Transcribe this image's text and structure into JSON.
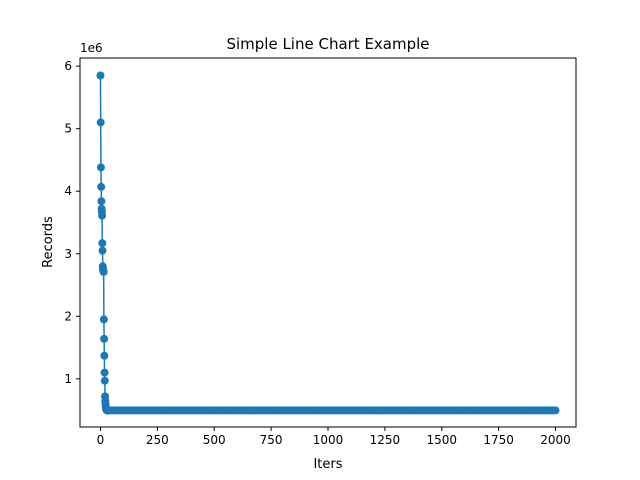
{
  "chart_data": {
    "type": "line",
    "title": "Simple Line Chart Example",
    "xlabel": "Iters",
    "ylabel": "Records",
    "y_offset_label": "1e6",
    "xlim": [
      -90,
      2090
    ],
    "ylim": [
      230000,
      6130000
    ],
    "xticks": [
      0,
      250,
      500,
      750,
      1000,
      1250,
      1500,
      1750,
      2000
    ],
    "yticks": [
      1000000,
      2000000,
      3000000,
      4000000,
      5000000,
      6000000
    ],
    "xtick_labels": [
      "0",
      "250",
      "500",
      "750",
      "1000",
      "1250",
      "1500",
      "1750",
      "2000"
    ],
    "ytick_labels": [
      "1",
      "2",
      "3",
      "4",
      "5",
      "6"
    ],
    "grid": false,
    "marker": "circle",
    "color": "#1f77b4",
    "series": [
      {
        "x": [
          0,
          1,
          2,
          3,
          4,
          5,
          6,
          7,
          8,
          9,
          10,
          11,
          12,
          13,
          14,
          15,
          16,
          17,
          18,
          19,
          20,
          21,
          22,
          23,
          24,
          25,
          26,
          27,
          28,
          29,
          30
        ],
        "values": [
          5850000,
          5100000,
          4380000,
          4070000,
          3840000,
          3720000,
          3670000,
          3610000,
          3170000,
          3050000,
          2800000,
          2760000,
          2730000,
          2720000,
          2710000,
          1950000,
          1640000,
          1370000,
          1100000,
          970000,
          720000,
          650000,
          600000,
          560000,
          530000,
          515000,
          505000,
          500000,
          498000,
          497000,
          496000
        ],
        "tail": {
          "x_start": 31,
          "x_end": 2000,
          "step": 10,
          "value": 495000
        }
      }
    ]
  }
}
